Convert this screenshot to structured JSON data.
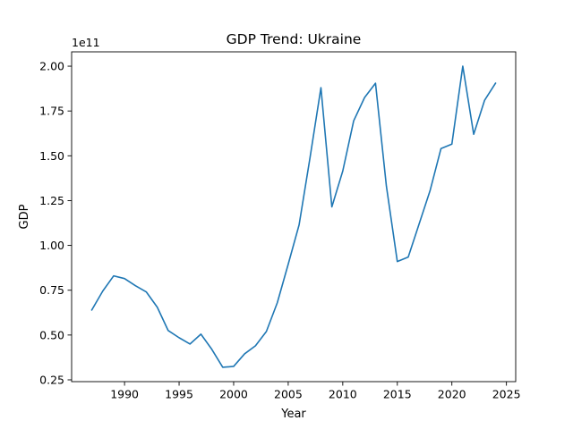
{
  "chart_data": {
    "type": "line",
    "title": "GDP Trend: Ukraine",
    "xlabel": "Year",
    "ylabel": "GDP",
    "y_offset_text": "1e11",
    "y_scale_factor": 100000000000,
    "xlim": [
      1985.15,
      2025.85
    ],
    "ylim": [
      0.24,
      2.08
    ],
    "x_ticks": [
      1990,
      1995,
      2000,
      2005,
      2010,
      2015,
      2020,
      2025
    ],
    "y_ticks": [
      0.25,
      0.5,
      0.75,
      1.0,
      1.25,
      1.5,
      1.75,
      2.0
    ],
    "y_tick_labels": [
      "0.25",
      "0.50",
      "0.75",
      "1.00",
      "1.25",
      "1.50",
      "1.75",
      "2.00"
    ],
    "grid": false,
    "line_color": "#1f77b4",
    "series": [
      {
        "x": [
          1987,
          1988,
          1989,
          1990,
          1991,
          1992,
          1993,
          1994,
          1995,
          1996,
          1997,
          1998,
          1999,
          2000,
          2001,
          2002,
          2003,
          2004,
          2005,
          2006,
          2007,
          2008,
          2009,
          2010,
          2011,
          2012,
          2013,
          2014,
          2015,
          2016,
          2017,
          2018,
          2019,
          2020,
          2021,
          2022,
          2023,
          2024
        ],
        "values": [
          0.64,
          0.745,
          0.83,
          0.815,
          0.775,
          0.74,
          0.655,
          0.525,
          0.485,
          0.45,
          0.505,
          0.42,
          0.32,
          0.325,
          0.395,
          0.44,
          0.52,
          0.68,
          0.895,
          1.115,
          1.49,
          1.88,
          1.215,
          1.415,
          1.695,
          1.825,
          1.905,
          1.33,
          0.91,
          0.935,
          1.12,
          1.305,
          1.54,
          1.565,
          2.0,
          1.62,
          1.81,
          1.905
        ]
      }
    ]
  }
}
